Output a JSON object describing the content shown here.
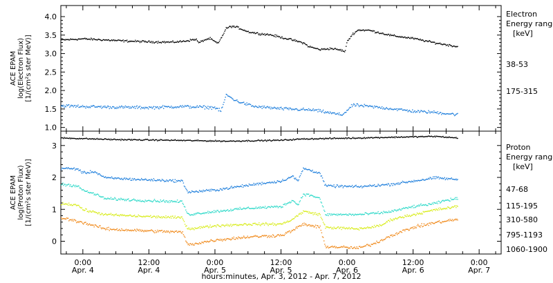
{
  "page": {
    "x_axis_title": "hours:minutes, Apr.  3, 2012 - Apr.  7, 2012"
  },
  "x_ticks": [
    {
      "t": 0,
      "time": "0:00",
      "date": "Apr. 4"
    },
    {
      "t": 12,
      "time": "12:00",
      "date": "Apr. 4"
    },
    {
      "t": 24,
      "time": "0:00",
      "date": "Apr. 5"
    },
    {
      "t": 36,
      "time": "12:00",
      "date": "Apr. 5"
    },
    {
      "t": 48,
      "time": "0:00",
      "date": "Apr. 6"
    },
    {
      "t": 60,
      "time": "12:00",
      "date": "Apr. 6"
    },
    {
      "t": 72,
      "time": "0:00",
      "date": "Apr. 7"
    }
  ],
  "chart_data": [
    {
      "type": "scatter",
      "panel": "electron",
      "ylabel_lines": [
        "ACE EPAM",
        "log(Electron Flux)",
        "[1/(cm²s ster MeV)]"
      ],
      "ylim": [
        0.9,
        4.3
      ],
      "yticks": [
        1.0,
        1.5,
        2.0,
        2.5,
        3.0,
        3.5,
        4.0
      ],
      "ytick_labels": [
        "1.0",
        "1.5",
        "2.0",
        "2.5",
        "3.0",
        "3.5",
        "4.0"
      ],
      "legend_title_lines": [
        "Electron",
        "Energy ranges",
        "[keV]"
      ],
      "series": [
        {
          "name": "38-53",
          "color": "#000000",
          "jitter": 0.04,
          "points": [
            [
              -4,
              3.38
            ],
            [
              0,
              3.41
            ],
            [
              4,
              3.38
            ],
            [
              8,
              3.35
            ],
            [
              12,
              3.33
            ],
            [
              16,
              3.32
            ],
            [
              18,
              3.34
            ],
            [
              20.5,
              3.4
            ],
            [
              21,
              3.3
            ],
            [
              22,
              3.38
            ],
            [
              23,
              3.42
            ],
            [
              24.5,
              3.28
            ],
            [
              26,
              3.7
            ],
            [
              27,
              3.75
            ],
            [
              28,
              3.72
            ],
            [
              30,
              3.6
            ],
            [
              32,
              3.55
            ],
            [
              34,
              3.52
            ],
            [
              36,
              3.45
            ],
            [
              38,
              3.38
            ],
            [
              40,
              3.3
            ],
            [
              41,
              3.2
            ],
            [
              43,
              3.12
            ],
            [
              45,
              3.15
            ],
            [
              47,
              3.1
            ],
            [
              47.5,
              3.05
            ],
            [
              48,
              3.35
            ],
            [
              49,
              3.55
            ],
            [
              50,
              3.65
            ],
            [
              52,
              3.64
            ],
            [
              56,
              3.5
            ],
            [
              60,
              3.42
            ],
            [
              64,
              3.3
            ],
            [
              68,
              3.2
            ]
          ]
        },
        {
          "name": "175-315",
          "color": "#1f7fdc",
          "jitter": 0.06,
          "points": [
            [
              -4,
              1.6
            ],
            [
              0,
              1.58
            ],
            [
              6,
              1.56
            ],
            [
              12,
              1.55
            ],
            [
              18,
              1.58
            ],
            [
              24,
              1.55
            ],
            [
              25,
              1.45
            ],
            [
              26,
              1.9
            ],
            [
              27,
              1.8
            ],
            [
              28,
              1.72
            ],
            [
              31,
              1.58
            ],
            [
              36,
              1.52
            ],
            [
              42,
              1.48
            ],
            [
              47,
              1.35
            ],
            [
              48.5,
              1.55
            ],
            [
              49,
              1.62
            ],
            [
              52,
              1.58
            ],
            [
              56,
              1.52
            ],
            [
              60,
              1.45
            ],
            [
              64,
              1.42
            ],
            [
              68,
              1.36
            ]
          ]
        }
      ]
    },
    {
      "type": "scatter",
      "panel": "proton",
      "ylabel_lines": [
        "ACE EPAM",
        "log(Proton Flux)",
        "[1/(cm²s ster MeV)]"
      ],
      "ylim": [
        -0.4,
        3.45
      ],
      "yticks": [
        0,
        1,
        2,
        3
      ],
      "ytick_labels": [
        "0",
        "1",
        "2",
        "3"
      ],
      "legend_title_lines": [
        "Proton",
        "Energy ranges",
        "[keV]"
      ],
      "series": [
        {
          "name": "47-68",
          "color": "#000000",
          "jitter": 0.03,
          "points": [
            [
              -4,
              3.25
            ],
            [
              6,
              3.2
            ],
            [
              16,
              3.18
            ],
            [
              26,
              3.15
            ],
            [
              36,
              3.18
            ],
            [
              40,
              3.22
            ],
            [
              50,
              3.25
            ],
            [
              58,
              3.28
            ],
            [
              64,
              3.3
            ],
            [
              68,
              3.25
            ]
          ]
        },
        {
          "name": "115-195",
          "color": "#1f7fdc",
          "jitter": 0.06,
          "points": [
            [
              -4,
              2.3
            ],
            [
              -1,
              2.28
            ],
            [
              0,
              2.15
            ],
            [
              2,
              2.2
            ],
            [
              4,
              2.0
            ],
            [
              10,
              1.95
            ],
            [
              18,
              1.9
            ],
            [
              19,
              1.55
            ],
            [
              24,
              1.62
            ],
            [
              28,
              1.72
            ],
            [
              32,
              1.82
            ],
            [
              36,
              1.9
            ],
            [
              38,
              2.05
            ],
            [
              39,
              1.9
            ],
            [
              40,
              2.3
            ],
            [
              42,
              2.2
            ],
            [
              43,
              2.15
            ],
            [
              44,
              1.75
            ],
            [
              50,
              1.72
            ],
            [
              56,
              1.8
            ],
            [
              60,
              1.9
            ],
            [
              64,
              2.0
            ],
            [
              68,
              1.95
            ]
          ]
        },
        {
          "name": "310-580",
          "color": "#2ed9c9",
          "jitter": 0.06,
          "points": [
            [
              -4,
              1.8
            ],
            [
              -1,
              1.75
            ],
            [
              0,
              1.6
            ],
            [
              2,
              1.5
            ],
            [
              4,
              1.35
            ],
            [
              10,
              1.3
            ],
            [
              18,
              1.25
            ],
            [
              19,
              0.85
            ],
            [
              24,
              0.95
            ],
            [
              30,
              1.05
            ],
            [
              36,
              1.1
            ],
            [
              38,
              1.3
            ],
            [
              39,
              1.15
            ],
            [
              40,
              1.5
            ],
            [
              42,
              1.42
            ],
            [
              43,
              1.35
            ],
            [
              44,
              0.85
            ],
            [
              50,
              0.85
            ],
            [
              54,
              0.9
            ],
            [
              56,
              0.95
            ],
            [
              60,
              1.1
            ],
            [
              64,
              1.2
            ],
            [
              66,
              1.3
            ],
            [
              68,
              1.35
            ]
          ]
        },
        {
          "name": "795-1193",
          "color": "#d8ec1a",
          "jitter": 0.06,
          "points": [
            [
              -4,
              1.2
            ],
            [
              -1,
              1.15
            ],
            [
              0,
              1.0
            ],
            [
              4,
              0.85
            ],
            [
              10,
              0.8
            ],
            [
              18,
              0.75
            ],
            [
              19,
              0.4
            ],
            [
              24,
              0.5
            ],
            [
              30,
              0.55
            ],
            [
              36,
              0.55
            ],
            [
              38,
              0.7
            ],
            [
              40,
              0.95
            ],
            [
              43,
              0.85
            ],
            [
              44,
              0.45
            ],
            [
              50,
              0.4
            ],
            [
              54,
              0.5
            ],
            [
              56,
              0.7
            ],
            [
              60,
              0.85
            ],
            [
              64,
              1.0
            ],
            [
              68,
              1.1
            ]
          ]
        },
        {
          "name": "1060-1900",
          "color": "#f08a1c",
          "jitter": 0.07,
          "points": [
            [
              -4,
              0.75
            ],
            [
              0,
              0.6
            ],
            [
              4,
              0.4
            ],
            [
              10,
              0.35
            ],
            [
              18,
              0.3
            ],
            [
              19,
              -0.1
            ],
            [
              24,
              0.05
            ],
            [
              30,
              0.15
            ],
            [
              36,
              0.2
            ],
            [
              38,
              0.35
            ],
            [
              40,
              0.55
            ],
            [
              43,
              0.45
            ],
            [
              44,
              -0.15
            ],
            [
              50,
              -0.2
            ],
            [
              53,
              -0.05
            ],
            [
              56,
              0.2
            ],
            [
              60,
              0.45
            ],
            [
              64,
              0.6
            ],
            [
              68,
              0.7
            ]
          ]
        }
      ]
    }
  ]
}
